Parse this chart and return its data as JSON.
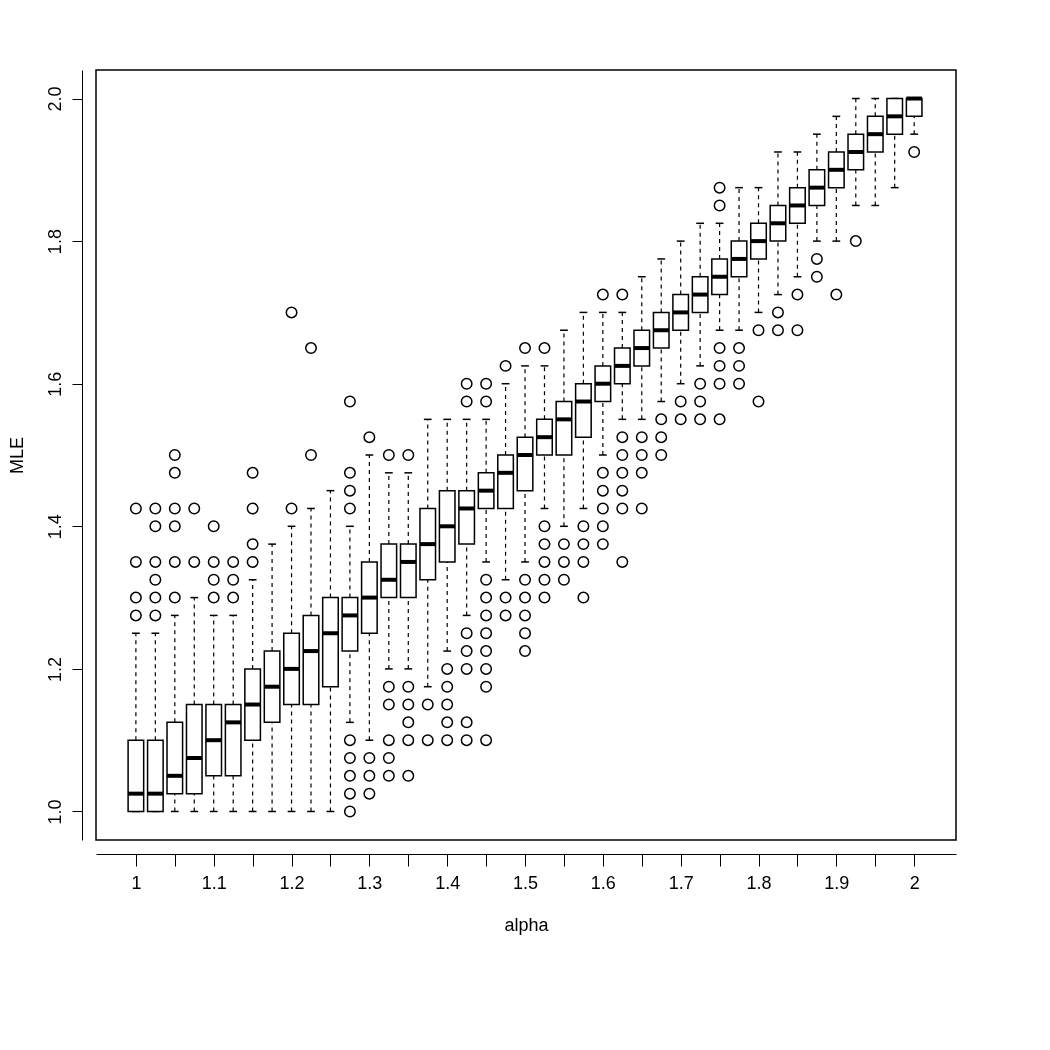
{
  "chart_data": {
    "type": "box",
    "xlabel": "alpha",
    "ylabel": "MLE",
    "categories": [
      "1",
      null,
      null,
      null,
      "1.1",
      null,
      null,
      null,
      "1.2",
      null,
      null,
      null,
      "1.3",
      null,
      null,
      null,
      "1.4",
      null,
      null,
      null,
      "1.5",
      null,
      null,
      null,
      "1.6",
      null,
      null,
      null,
      "1.7",
      null,
      null,
      null,
      "1.8",
      null,
      null,
      null,
      "1.9",
      null,
      null,
      null,
      "2"
    ],
    "ylim": [
      0.96,
      2.04
    ],
    "yticks": [
      {
        "value": 1,
        "label": "1.0"
      },
      1.2,
      1.4,
      1.6,
      1.8,
      {
        "value": 2,
        "label": "2.0"
      }
    ],
    "grid": false,
    "boxes": [
      {
        "low": 1.0,
        "q1": 1.0,
        "median": 1.025,
        "q3": 1.1,
        "high": 1.25,
        "outliers": [
          1.275,
          1.3,
          1.35,
          1.425
        ]
      },
      {
        "low": 1.0,
        "q1": 1.0,
        "median": 1.025,
        "q3": 1.1,
        "high": 1.25,
        "outliers": [
          1.275,
          1.3,
          1.325,
          1.35,
          1.4,
          1.425
        ]
      },
      {
        "low": 1.0,
        "q1": 1.025,
        "median": 1.05,
        "q3": 1.125,
        "high": 1.275,
        "outliers": [
          1.3,
          1.35,
          1.4,
          1.425,
          1.475,
          1.5
        ]
      },
      {
        "low": 1.0,
        "q1": 1.025,
        "median": 1.075,
        "q3": 1.15,
        "high": 1.3,
        "outliers": [
          1.35,
          1.425
        ]
      },
      {
        "low": 1.0,
        "q1": 1.05,
        "median": 1.1,
        "q3": 1.15,
        "high": 1.275,
        "outliers": [
          1.3,
          1.325,
          1.35,
          1.4
        ]
      },
      {
        "low": 1.0,
        "q1": 1.05,
        "median": 1.125,
        "q3": 1.15,
        "high": 1.275,
        "outliers": [
          1.3,
          1.325,
          1.35
        ]
      },
      {
        "low": 1.0,
        "q1": 1.1,
        "median": 1.15,
        "q3": 1.2,
        "high": 1.325,
        "outliers": [
          1.35,
          1.375,
          1.425,
          1.475
        ]
      },
      {
        "low": 1.0,
        "q1": 1.125,
        "median": 1.175,
        "q3": 1.225,
        "high": 1.375
      },
      {
        "low": 1.0,
        "q1": 1.15,
        "median": 1.2,
        "q3": 1.25,
        "high": 1.4,
        "outliers": [
          1.425,
          1.7
        ]
      },
      {
        "low": 1.0,
        "q1": 1.15,
        "median": 1.225,
        "q3": 1.275,
        "high": 1.425,
        "outliers": [
          1.5,
          1.65
        ]
      },
      {
        "low": 1.0,
        "q1": 1.175,
        "median": 1.25,
        "q3": 1.3,
        "high": 1.45
      },
      {
        "low": 1.125,
        "q1": 1.225,
        "median": 1.275,
        "q3": 1.3,
        "high": 1.4,
        "outliers": [
          1.0,
          1.025,
          1.05,
          1.075,
          1.1,
          1.425,
          1.45,
          1.475,
          1.575
        ]
      },
      {
        "low": 1.1,
        "q1": 1.25,
        "median": 1.3,
        "q3": 1.35,
        "high": 1.5,
        "outliers": [
          1.025,
          1.05,
          1.075,
          1.525
        ]
      },
      {
        "low": 1.2,
        "q1": 1.3,
        "median": 1.325,
        "q3": 1.375,
        "high": 1.475,
        "outliers": [
          1.05,
          1.075,
          1.1,
          1.15,
          1.175,
          1.5
        ]
      },
      {
        "low": 1.2,
        "q1": 1.3,
        "median": 1.35,
        "q3": 1.375,
        "high": 1.475,
        "outliers": [
          1.05,
          1.1,
          1.125,
          1.15,
          1.175,
          1.5
        ]
      },
      {
        "low": 1.175,
        "q1": 1.325,
        "median": 1.375,
        "q3": 1.425,
        "high": 1.55,
        "outliers": [
          1.1,
          1.15
        ]
      },
      {
        "low": 1.225,
        "q1": 1.35,
        "median": 1.4,
        "q3": 1.45,
        "high": 1.55,
        "outliers": [
          1.1,
          1.125,
          1.15,
          1.175,
          1.2
        ]
      },
      {
        "low": 1.275,
        "q1": 1.375,
        "median": 1.425,
        "q3": 1.45,
        "high": 1.55,
        "outliers": [
          1.1,
          1.125,
          1.2,
          1.225,
          1.25,
          1.575,
          1.6
        ]
      },
      {
        "low": 1.35,
        "q1": 1.425,
        "median": 1.45,
        "q3": 1.475,
        "high": 1.55,
        "outliers": [
          1.1,
          1.175,
          1.2,
          1.225,
          1.25,
          1.275,
          1.3,
          1.325,
          1.575,
          1.6
        ]
      },
      {
        "low": 1.325,
        "q1": 1.425,
        "median": 1.475,
        "q3": 1.5,
        "high": 1.6,
        "outliers": [
          1.275,
          1.3,
          1.625
        ]
      },
      {
        "low": 1.35,
        "q1": 1.45,
        "median": 1.5,
        "q3": 1.525,
        "high": 1.625,
        "outliers": [
          1.225,
          1.25,
          1.275,
          1.3,
          1.325,
          1.65
        ]
      },
      {
        "low": 1.425,
        "q1": 1.5,
        "median": 1.525,
        "q3": 1.55,
        "high": 1.625,
        "outliers": [
          1.3,
          1.325,
          1.35,
          1.375,
          1.4,
          1.65
        ]
      },
      {
        "low": 1.4,
        "q1": 1.5,
        "median": 1.55,
        "q3": 1.575,
        "high": 1.675,
        "outliers": [
          1.325,
          1.35,
          1.375
        ]
      },
      {
        "low": 1.425,
        "q1": 1.525,
        "median": 1.575,
        "q3": 1.6,
        "high": 1.7,
        "outliers": [
          1.3,
          1.35,
          1.375,
          1.4
        ]
      },
      {
        "low": 1.5,
        "q1": 1.575,
        "median": 1.6,
        "q3": 1.625,
        "high": 1.7,
        "outliers": [
          1.375,
          1.4,
          1.425,
          1.45,
          1.475,
          1.725
        ]
      },
      {
        "low": 1.55,
        "q1": 1.6,
        "median": 1.625,
        "q3": 1.65,
        "high": 1.7,
        "outliers": [
          1.35,
          1.425,
          1.45,
          1.475,
          1.5,
          1.525,
          1.725
        ]
      },
      {
        "low": 1.55,
        "q1": 1.625,
        "median": 1.65,
        "q3": 1.675,
        "high": 1.75,
        "outliers": [
          1.425,
          1.475,
          1.5,
          1.525
        ]
      },
      {
        "low": 1.575,
        "q1": 1.65,
        "median": 1.675,
        "q3": 1.7,
        "high": 1.775,
        "outliers": [
          1.5,
          1.525,
          1.55
        ]
      },
      {
        "low": 1.6,
        "q1": 1.675,
        "median": 1.7,
        "q3": 1.725,
        "high": 1.8,
        "outliers": [
          1.55,
          1.575
        ]
      },
      {
        "low": 1.625,
        "q1": 1.7,
        "median": 1.725,
        "q3": 1.75,
        "high": 1.825,
        "outliers": [
          1.55,
          1.575,
          1.6
        ]
      },
      {
        "low": 1.675,
        "q1": 1.725,
        "median": 1.75,
        "q3": 1.775,
        "high": 1.825,
        "outliers": [
          1.55,
          1.6,
          1.625,
          1.65,
          1.85,
          1.875
        ]
      },
      {
        "low": 1.675,
        "q1": 1.75,
        "median": 1.775,
        "q3": 1.8,
        "high": 1.875,
        "outliers": [
          1.6,
          1.625,
          1.65
        ]
      },
      {
        "low": 1.7,
        "q1": 1.775,
        "median": 1.8,
        "q3": 1.825,
        "high": 1.875,
        "outliers": [
          1.575,
          1.675
        ]
      },
      {
        "low": 1.725,
        "q1": 1.8,
        "median": 1.825,
        "q3": 1.85,
        "high": 1.925,
        "outliers": [
          1.675,
          1.7
        ]
      },
      {
        "low": 1.75,
        "q1": 1.825,
        "median": 1.85,
        "q3": 1.875,
        "high": 1.925,
        "outliers": [
          1.675,
          1.725
        ]
      },
      {
        "low": 1.8,
        "q1": 1.85,
        "median": 1.875,
        "q3": 1.9,
        "high": 1.95,
        "outliers": [
          1.75,
          1.775
        ]
      },
      {
        "low": 1.8,
        "q1": 1.875,
        "median": 1.9,
        "q3": 1.925,
        "high": 1.975,
        "outliers": [
          1.725
        ]
      },
      {
        "low": 1.85,
        "q1": 1.9,
        "median": 1.925,
        "q3": 1.95,
        "high": 2.0,
        "outliers": [
          1.8
        ]
      },
      {
        "low": 1.85,
        "q1": 1.925,
        "median": 1.95,
        "q3": 1.975,
        "high": 2.0
      },
      {
        "low": 1.875,
        "q1": 1.95,
        "median": 1.975,
        "q3": 2.0,
        "high": 2.0
      },
      {
        "low": 1.95,
        "q1": 1.975,
        "median": 2.0,
        "q3": 2.0,
        "high": 2.0,
        "outliers": [
          1.925
        ]
      }
    ]
  }
}
